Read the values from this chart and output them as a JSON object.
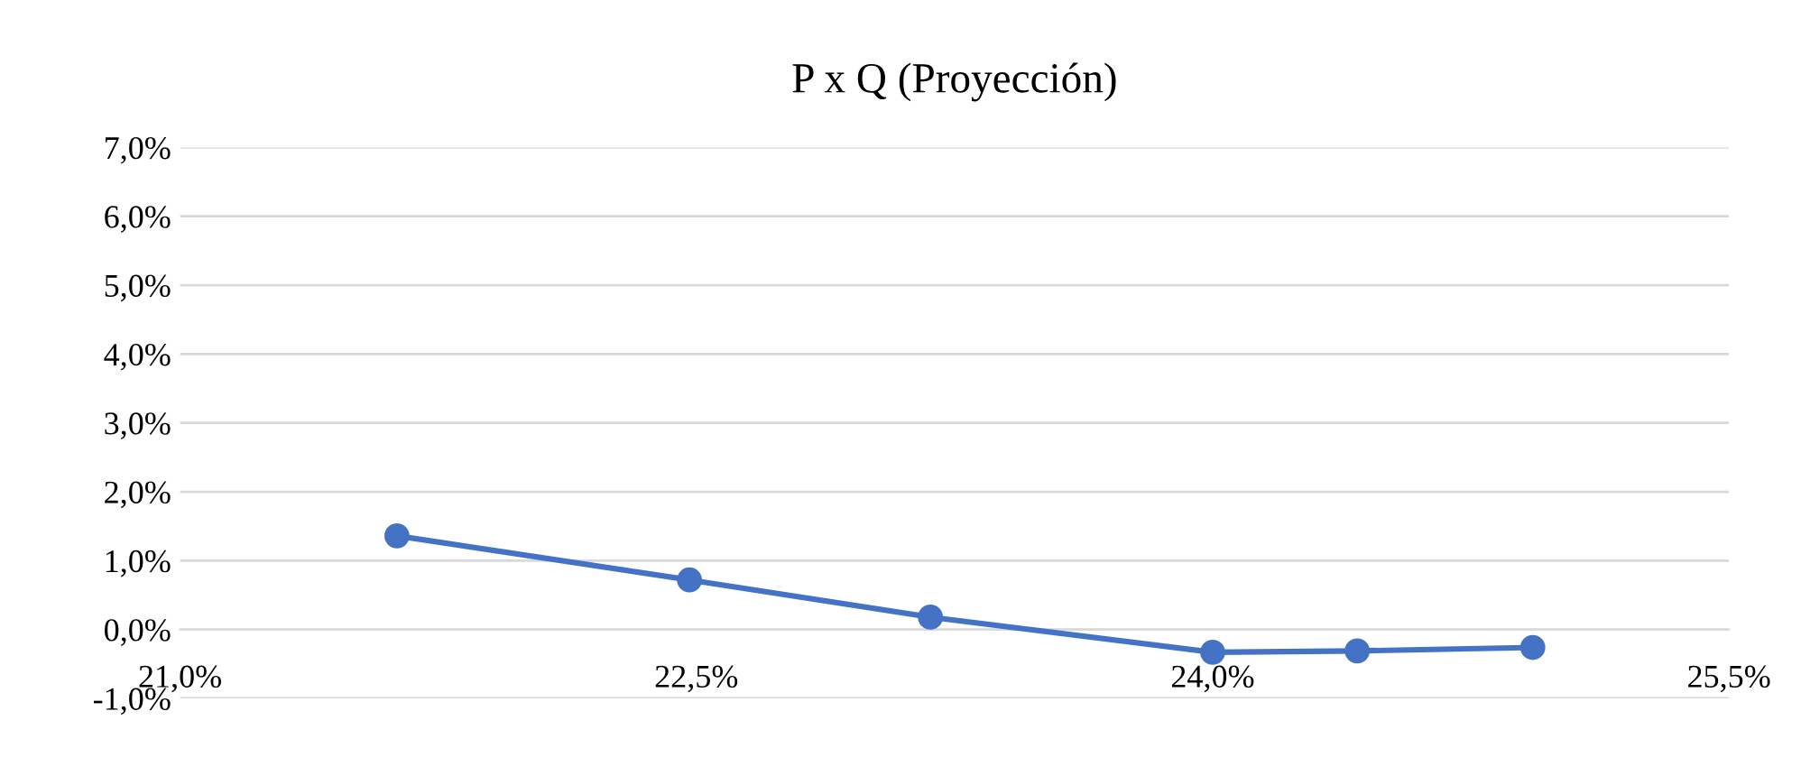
{
  "chart_data": {
    "type": "line",
    "title": "P x Q (Proyección)",
    "x": [
      21.63,
      22.48,
      23.18,
      24.0,
      24.42,
      24.93
    ],
    "series": [
      {
        "color": "#4472c4",
        "values": [
          1.36,
          0.72,
          0.18,
          -0.33,
          -0.31,
          -0.26
        ]
      }
    ],
    "xlim": [
      21.0,
      25.5
    ],
    "xticks": [
      {
        "value": 21.0,
        "label": "21,0%"
      },
      {
        "value": 22.5,
        "label": "22,5%"
      },
      {
        "value": 24.0,
        "label": "24,0%"
      },
      {
        "value": 25.5,
        "label": "25,5%"
      }
    ],
    "ylim": [
      -1.0,
      7.0
    ],
    "yticks": [
      {
        "value": -1,
        "label": "-1,0%"
      },
      {
        "value": 0,
        "label": "0,0%"
      },
      {
        "value": 1,
        "label": "1,0%"
      },
      {
        "value": 2,
        "label": "2,0%"
      },
      {
        "value": 3,
        "label": "3,0%"
      },
      {
        "value": 4,
        "label": "4,0%"
      },
      {
        "value": 5,
        "label": "5,0%"
      },
      {
        "value": 6,
        "label": "6,0%"
      },
      {
        "value": 7,
        "label": "7,0%"
      }
    ],
    "grid": "y",
    "marker": "circle",
    "line_style": "solid"
  }
}
